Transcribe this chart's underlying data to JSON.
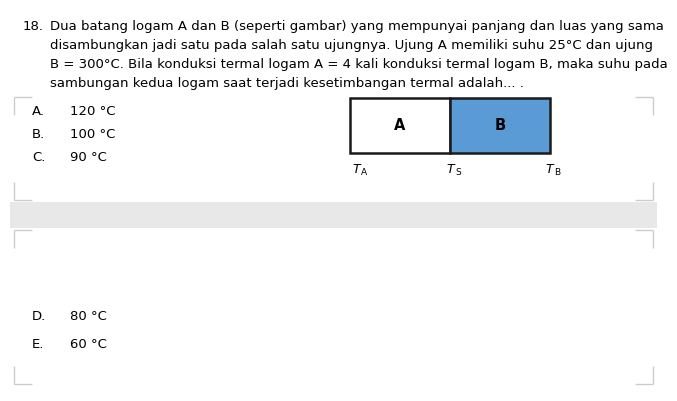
{
  "title_num": "18.",
  "line1": "Dua batang logam A dan B (seperti gambar) yang mempunyai panjang dan luas yang sama",
  "line2": "disambungkan jadi satu pada salah satu ujungnya. Ujung A memiliki suhu 25°C dan ujung",
  "line3": "B = 300°C. Bila konduksi termal logam A = 4 kali konduksi termal logam B, maka suhu pada",
  "line4": "sambungan kedua logam saat terjadi kesetimbangan termal adalah... .",
  "options": [
    {
      "label": "A.",
      "text": "120 °C"
    },
    {
      "label": "B.",
      "text": "100 °C"
    },
    {
      "label": "C.",
      "text": "90 °C"
    },
    {
      "label": "D.",
      "text": "80 °C"
    },
    {
      "label": "E.",
      "text": "60 °C"
    }
  ],
  "box_A_color": "#ffffff",
  "box_B_color": "#5b9bd5",
  "box_border_color": "#1a1a1a",
  "box_text_A": "A",
  "box_text_B": "B",
  "label_TA": "T",
  "label_TA_sub": "A",
  "label_TS": "T",
  "label_TS_sub": "S",
  "label_TB": "T",
  "label_TB_sub": "B",
  "bg_color": "#ffffff",
  "text_color": "#000000",
  "font_size": 9.5,
  "divider_color": "#e8e8e8",
  "bracket_color": "#cccccc"
}
